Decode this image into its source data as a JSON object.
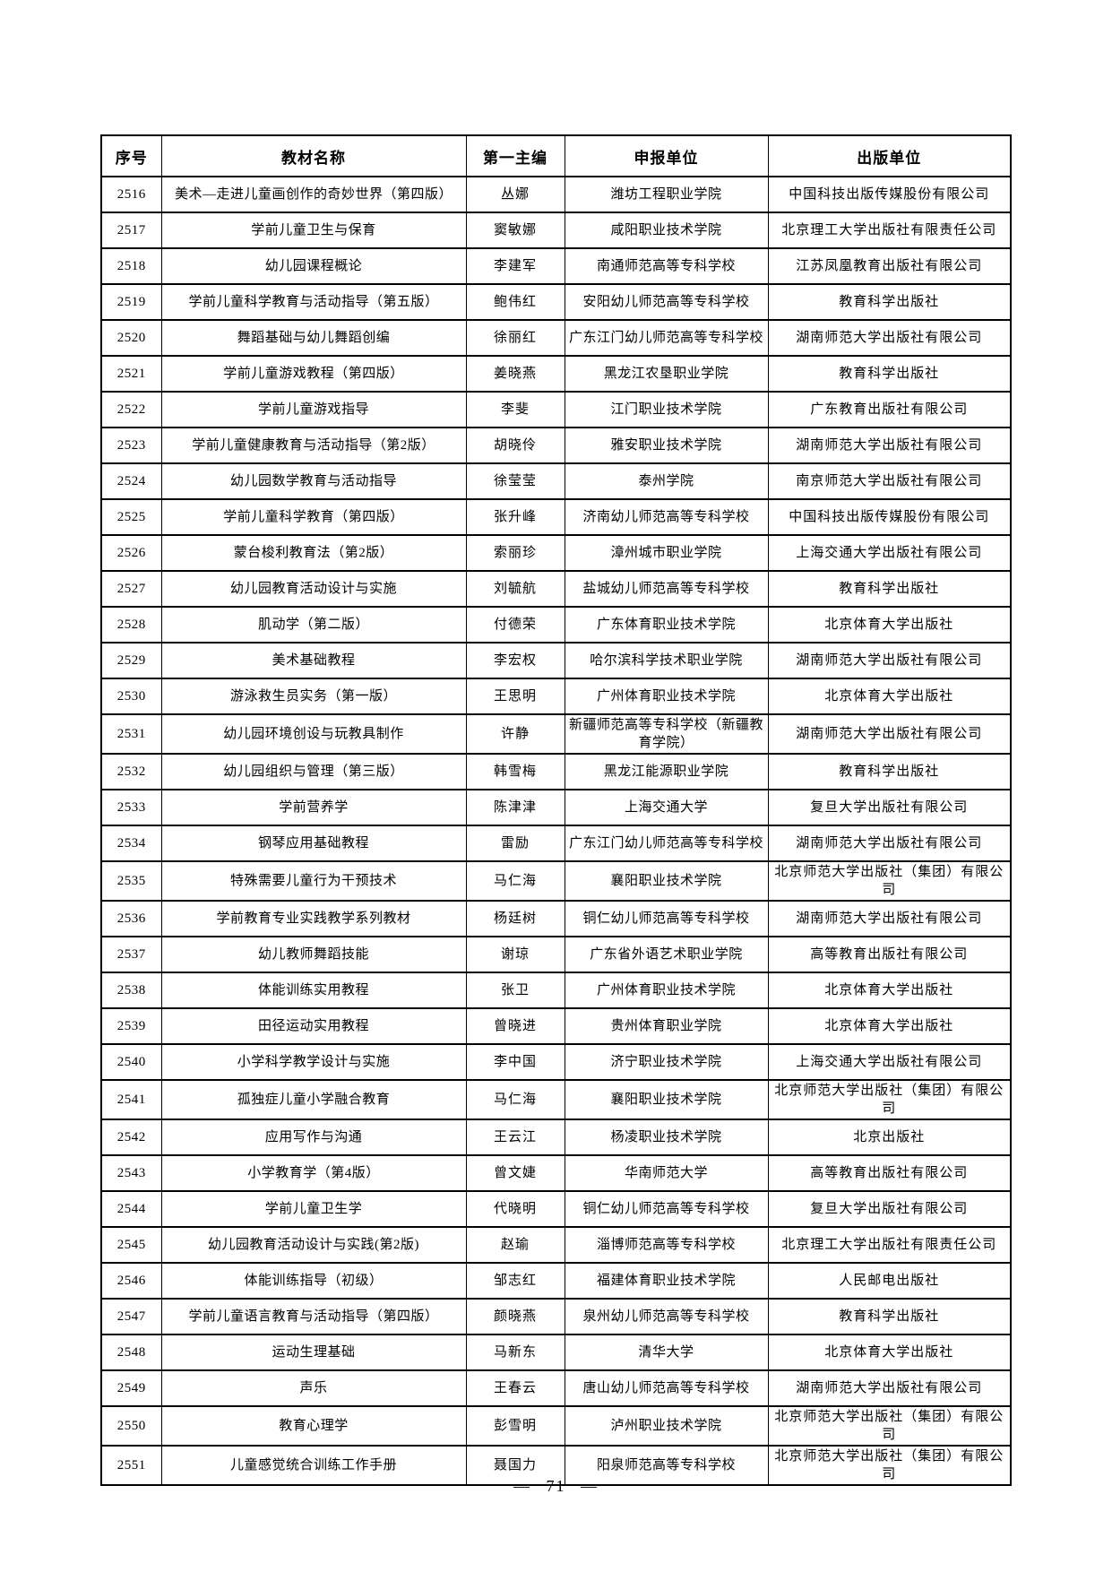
{
  "table": {
    "headers": [
      "序号",
      "教材名称",
      "第一主编",
      "申报单位",
      "出版单位"
    ],
    "rows": [
      {
        "id": "2516",
        "title": "美术—走进儿童画创作的奇妙世界（第四版）",
        "editor": "丛娜",
        "applicant": "潍坊工程职业学院",
        "publisher": "中国科技出版传媒股份有限公司"
      },
      {
        "id": "2517",
        "title": "学前儿童卫生与保育",
        "editor": "窦敏娜",
        "applicant": "咸阳职业技术学院",
        "publisher": "北京理工大学出版社有限责任公司"
      },
      {
        "id": "2518",
        "title": "幼儿园课程概论",
        "editor": "李建军",
        "applicant": "南通师范高等专科学校",
        "publisher": "江苏凤凰教育出版社有限公司"
      },
      {
        "id": "2519",
        "title": "学前儿童科学教育与活动指导（第五版）",
        "editor": "鲍伟红",
        "applicant": "安阳幼儿师范高等专科学校",
        "publisher": "教育科学出版社"
      },
      {
        "id": "2520",
        "title": "舞蹈基础与幼儿舞蹈创编",
        "editor": "徐丽红",
        "applicant": "广东江门幼儿师范高等专科学校",
        "publisher": "湖南师范大学出版社有限公司"
      },
      {
        "id": "2521",
        "title": "学前儿童游戏教程（第四版）",
        "editor": "姜晓燕",
        "applicant": "黑龙江农垦职业学院",
        "publisher": "教育科学出版社"
      },
      {
        "id": "2522",
        "title": "学前儿童游戏指导",
        "editor": "李斐",
        "applicant": "江门职业技术学院",
        "publisher": "广东教育出版社有限公司"
      },
      {
        "id": "2523",
        "title": "学前儿童健康教育与活动指导（第2版）",
        "editor": "胡晓伶",
        "applicant": "雅安职业技术学院",
        "publisher": "湖南师范大学出版社有限公司"
      },
      {
        "id": "2524",
        "title": "幼儿园数学教育与活动指导",
        "editor": "徐莹莹",
        "applicant": "泰州学院",
        "publisher": "南京师范大学出版社有限公司"
      },
      {
        "id": "2525",
        "title": "学前儿童科学教育（第四版）",
        "editor": "张升峰",
        "applicant": "济南幼儿师范高等专科学校",
        "publisher": "中国科技出版传媒股份有限公司"
      },
      {
        "id": "2526",
        "title": "蒙台梭利教育法（第2版）",
        "editor": "索丽珍",
        "applicant": "漳州城市职业学院",
        "publisher": "上海交通大学出版社有限公司"
      },
      {
        "id": "2527",
        "title": "幼儿园教育活动设计与实施",
        "editor": "刘毓航",
        "applicant": "盐城幼儿师范高等专科学校",
        "publisher": "教育科学出版社"
      },
      {
        "id": "2528",
        "title": "肌动学（第二版）",
        "editor": "付德荣",
        "applicant": "广东体育职业技术学院",
        "publisher": "北京体育大学出版社"
      },
      {
        "id": "2529",
        "title": "美术基础教程",
        "editor": "李宏权",
        "applicant": "哈尔滨科学技术职业学院",
        "publisher": "湖南师范大学出版社有限公司"
      },
      {
        "id": "2530",
        "title": "游泳救生员实务（第一版）",
        "editor": "王思明",
        "applicant": "广州体育职业技术学院",
        "publisher": "北京体育大学出版社"
      },
      {
        "id": "2531",
        "title": "幼儿园环境创设与玩教具制作",
        "editor": "许静",
        "applicant": "新疆师范高等专科学校（新疆教育学院）",
        "publisher": "湖南师范大学出版社有限公司"
      },
      {
        "id": "2532",
        "title": "幼儿园组织与管理（第三版）",
        "editor": "韩雪梅",
        "applicant": "黑龙江能源职业学院",
        "publisher": "教育科学出版社"
      },
      {
        "id": "2533",
        "title": "学前营养学",
        "editor": "陈津津",
        "applicant": "上海交通大学",
        "publisher": "复旦大学出版社有限公司"
      },
      {
        "id": "2534",
        "title": "钢琴应用基础教程",
        "editor": "雷励",
        "applicant": "广东江门幼儿师范高等专科学校",
        "publisher": "湖南师范大学出版社有限公司"
      },
      {
        "id": "2535",
        "title": "特殊需要儿童行为干预技术",
        "editor": "马仁海",
        "applicant": "襄阳职业技术学院",
        "publisher": "北京师范大学出版社（集团）有限公司"
      },
      {
        "id": "2536",
        "title": "学前教育专业实践教学系列教材",
        "editor": "杨廷树",
        "applicant": "铜仁幼儿师范高等专科学校",
        "publisher": "湖南师范大学出版社有限公司"
      },
      {
        "id": "2537",
        "title": "幼儿教师舞蹈技能",
        "editor": "谢琼",
        "applicant": "广东省外语艺术职业学院",
        "publisher": "高等教育出版社有限公司"
      },
      {
        "id": "2538",
        "title": "体能训练实用教程",
        "editor": "张卫",
        "applicant": "广州体育职业技术学院",
        "publisher": "北京体育大学出版社"
      },
      {
        "id": "2539",
        "title": "田径运动实用教程",
        "editor": "曾晓进",
        "applicant": "贵州体育职业学院",
        "publisher": "北京体育大学出版社"
      },
      {
        "id": "2540",
        "title": "小学科学教学设计与实施",
        "editor": "李中国",
        "applicant": "济宁职业技术学院",
        "publisher": "上海交通大学出版社有限公司"
      },
      {
        "id": "2541",
        "title": "孤独症儿童小学融合教育",
        "editor": "马仁海",
        "applicant": "襄阳职业技术学院",
        "publisher": "北京师范大学出版社（集团）有限公司"
      },
      {
        "id": "2542",
        "title": "应用写作与沟通",
        "editor": "王云江",
        "applicant": "杨凌职业技术学院",
        "publisher": "北京出版社"
      },
      {
        "id": "2543",
        "title": "小学教育学（第4版）",
        "editor": "曾文婕",
        "applicant": "华南师范大学",
        "publisher": "高等教育出版社有限公司"
      },
      {
        "id": "2544",
        "title": "学前儿童卫生学",
        "editor": "代晓明",
        "applicant": "铜仁幼儿师范高等专科学校",
        "publisher": "复旦大学出版社有限公司"
      },
      {
        "id": "2545",
        "title": "幼儿园教育活动设计与实践(第2版)",
        "editor": "赵瑜",
        "applicant": "淄博师范高等专科学校",
        "publisher": "北京理工大学出版社有限责任公司"
      },
      {
        "id": "2546",
        "title": "体能训练指导（初级）",
        "editor": "邹志红",
        "applicant": "福建体育职业技术学院",
        "publisher": "人民邮电出版社"
      },
      {
        "id": "2547",
        "title": "学前儿童语言教育与活动指导（第四版）",
        "editor": "颜晓燕",
        "applicant": "泉州幼儿师范高等专科学校",
        "publisher": "教育科学出版社"
      },
      {
        "id": "2548",
        "title": "运动生理基础",
        "editor": "马新东",
        "applicant": "清华大学",
        "publisher": "北京体育大学出版社"
      },
      {
        "id": "2549",
        "title": "声乐",
        "editor": "王春云",
        "applicant": "唐山幼儿师范高等专科学校",
        "publisher": "湖南师范大学出版社有限公司"
      },
      {
        "id": "2550",
        "title": "教育心理学",
        "editor": "彭雪明",
        "applicant": "泸州职业技术学院",
        "publisher": "北京师范大学出版社（集团）有限公司"
      },
      {
        "id": "2551",
        "title": "儿童感觉统合训练工作手册",
        "editor": "聂国力",
        "applicant": "阳泉师范高等专科学校",
        "publisher": "北京师范大学出版社（集团）有限公司"
      }
    ]
  },
  "footer": {
    "page_number": "— 71 —"
  }
}
